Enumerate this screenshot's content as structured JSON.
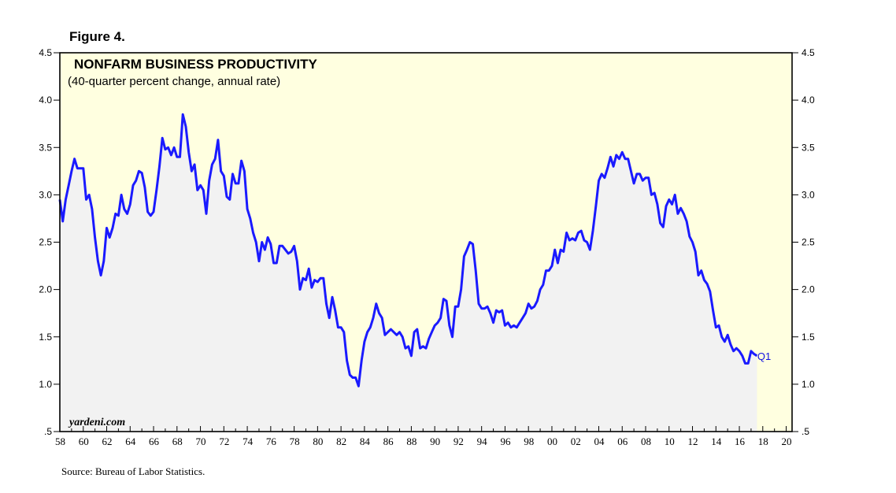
{
  "figure_label": "Figure 4.",
  "watermark": "yardeni.com",
  "source": "Source: Bureau of Labor Statistics.",
  "colors": {
    "plot_bg": "#ffffe0",
    "area_fill": "#f2f2f2",
    "line": "#1a1aff",
    "text": "#000000"
  },
  "chart_data": {
    "type": "area",
    "title": "NONFARM BUSINESS PRODUCTIVITY",
    "subtitle": "(40-quarter percent change, annual rate)",
    "xlabel": "",
    "ylabel": "",
    "xlim": [
      1958,
      2020.5
    ],
    "ylim": [
      0.5,
      4.5
    ],
    "y_ticks": [
      0.5,
      1.0,
      1.5,
      2.0,
      2.5,
      3.0,
      3.5,
      4.0,
      4.5
    ],
    "y_tick_labels": [
      ".5",
      "1.0",
      "1.5",
      "2.0",
      "2.5",
      "3.0",
      "3.5",
      "4.0",
      "4.5"
    ],
    "x_tick_labels": [
      "58",
      "60",
      "62",
      "64",
      "66",
      "68",
      "70",
      "72",
      "74",
      "76",
      "78",
      "80",
      "82",
      "84",
      "86",
      "88",
      "90",
      "92",
      "94",
      "96",
      "98",
      "00",
      "02",
      "04",
      "06",
      "08",
      "10",
      "12",
      "14",
      "16",
      "18",
      "20"
    ],
    "annotation": {
      "text": "Q1",
      "x": 2017.0,
      "y": 1.3
    },
    "series": [
      {
        "name": "Nonfarm business productivity",
        "points": [
          [
            1958.0,
            2.95
          ],
          [
            1958.25,
            2.72
          ],
          [
            1958.5,
            2.95
          ],
          [
            1958.75,
            3.1
          ],
          [
            1959.0,
            3.25
          ],
          [
            1959.25,
            3.38
          ],
          [
            1959.5,
            3.28
          ],
          [
            1960.0,
            3.28
          ],
          [
            1960.25,
            2.95
          ],
          [
            1960.5,
            3.0
          ],
          [
            1960.75,
            2.85
          ],
          [
            1961.0,
            2.55
          ],
          [
            1961.25,
            2.3
          ],
          [
            1961.5,
            2.15
          ],
          [
            1961.75,
            2.3
          ],
          [
            1962.0,
            2.65
          ],
          [
            1962.25,
            2.55
          ],
          [
            1962.5,
            2.65
          ],
          [
            1962.75,
            2.8
          ],
          [
            1963.0,
            2.78
          ],
          [
            1963.25,
            3.0
          ],
          [
            1963.5,
            2.85
          ],
          [
            1963.75,
            2.8
          ],
          [
            1964.0,
            2.9
          ],
          [
            1964.25,
            3.1
          ],
          [
            1964.5,
            3.15
          ],
          [
            1964.75,
            3.25
          ],
          [
            1965.0,
            3.23
          ],
          [
            1965.25,
            3.08
          ],
          [
            1965.5,
            2.82
          ],
          [
            1965.75,
            2.78
          ],
          [
            1966.0,
            2.82
          ],
          [
            1966.25,
            3.05
          ],
          [
            1966.5,
            3.3
          ],
          [
            1966.75,
            3.6
          ],
          [
            1967.0,
            3.48
          ],
          [
            1967.25,
            3.5
          ],
          [
            1967.5,
            3.42
          ],
          [
            1967.75,
            3.5
          ],
          [
            1968.0,
            3.4
          ],
          [
            1968.25,
            3.4
          ],
          [
            1968.5,
            3.85
          ],
          [
            1968.75,
            3.72
          ],
          [
            1969.0,
            3.45
          ],
          [
            1969.25,
            3.25
          ],
          [
            1969.5,
            3.32
          ],
          [
            1969.75,
            3.05
          ],
          [
            1970.0,
            3.1
          ],
          [
            1970.25,
            3.05
          ],
          [
            1970.5,
            2.8
          ],
          [
            1970.75,
            3.15
          ],
          [
            1971.0,
            3.32
          ],
          [
            1971.25,
            3.38
          ],
          [
            1971.5,
            3.58
          ],
          [
            1971.75,
            3.25
          ],
          [
            1972.0,
            3.2
          ],
          [
            1972.25,
            2.98
          ],
          [
            1972.5,
            2.95
          ],
          [
            1972.75,
            3.22
          ],
          [
            1973.0,
            3.12
          ],
          [
            1973.25,
            3.12
          ],
          [
            1973.5,
            3.36
          ],
          [
            1973.75,
            3.25
          ],
          [
            1974.0,
            2.85
          ],
          [
            1974.25,
            2.75
          ],
          [
            1974.5,
            2.6
          ],
          [
            1974.75,
            2.5
          ],
          [
            1975.0,
            2.3
          ],
          [
            1975.25,
            2.5
          ],
          [
            1975.5,
            2.42
          ],
          [
            1975.75,
            2.55
          ],
          [
            1976.0,
            2.48
          ],
          [
            1976.25,
            2.28
          ],
          [
            1976.5,
            2.28
          ],
          [
            1976.75,
            2.46
          ],
          [
            1977.0,
            2.46
          ],
          [
            1977.25,
            2.42
          ],
          [
            1977.5,
            2.38
          ],
          [
            1977.75,
            2.4
          ],
          [
            1978.0,
            2.46
          ],
          [
            1978.25,
            2.3
          ],
          [
            1978.5,
            2.0
          ],
          [
            1978.75,
            2.12
          ],
          [
            1979.0,
            2.1
          ],
          [
            1979.25,
            2.22
          ],
          [
            1979.5,
            2.02
          ],
          [
            1979.75,
            2.1
          ],
          [
            1980.0,
            2.08
          ],
          [
            1980.25,
            2.12
          ],
          [
            1980.5,
            2.12
          ],
          [
            1980.75,
            1.85
          ],
          [
            1981.0,
            1.7
          ],
          [
            1981.25,
            1.92
          ],
          [
            1981.5,
            1.78
          ],
          [
            1981.75,
            1.6
          ],
          [
            1982.0,
            1.6
          ],
          [
            1982.25,
            1.55
          ],
          [
            1982.5,
            1.25
          ],
          [
            1982.75,
            1.1
          ],
          [
            1983.0,
            1.07
          ],
          [
            1983.25,
            1.07
          ],
          [
            1983.5,
            0.98
          ],
          [
            1983.75,
            1.25
          ],
          [
            1984.0,
            1.45
          ],
          [
            1984.25,
            1.55
          ],
          [
            1984.5,
            1.6
          ],
          [
            1984.75,
            1.7
          ],
          [
            1985.0,
            1.85
          ],
          [
            1985.25,
            1.75
          ],
          [
            1985.5,
            1.7
          ],
          [
            1985.75,
            1.52
          ],
          [
            1986.0,
            1.55
          ],
          [
            1986.25,
            1.58
          ],
          [
            1986.5,
            1.55
          ],
          [
            1986.75,
            1.52
          ],
          [
            1987.0,
            1.55
          ],
          [
            1987.25,
            1.5
          ],
          [
            1987.5,
            1.38
          ],
          [
            1987.75,
            1.4
          ],
          [
            1988.0,
            1.3
          ],
          [
            1988.25,
            1.55
          ],
          [
            1988.5,
            1.58
          ],
          [
            1988.75,
            1.38
          ],
          [
            1989.0,
            1.4
          ],
          [
            1989.25,
            1.38
          ],
          [
            1989.5,
            1.48
          ],
          [
            1989.75,
            1.55
          ],
          [
            1990.0,
            1.62
          ],
          [
            1990.25,
            1.65
          ],
          [
            1990.5,
            1.7
          ],
          [
            1990.75,
            1.9
          ],
          [
            1991.0,
            1.88
          ],
          [
            1991.25,
            1.62
          ],
          [
            1991.5,
            1.5
          ],
          [
            1991.75,
            1.82
          ],
          [
            1992.0,
            1.82
          ],
          [
            1992.25,
            2.0
          ],
          [
            1992.5,
            2.35
          ],
          [
            1992.75,
            2.42
          ],
          [
            1993.0,
            2.5
          ],
          [
            1993.25,
            2.48
          ],
          [
            1993.5,
            2.2
          ],
          [
            1993.75,
            1.85
          ],
          [
            1994.0,
            1.8
          ],
          [
            1994.25,
            1.8
          ],
          [
            1994.5,
            1.82
          ],
          [
            1994.75,
            1.75
          ],
          [
            1995.0,
            1.65
          ],
          [
            1995.25,
            1.78
          ],
          [
            1995.5,
            1.76
          ],
          [
            1995.75,
            1.78
          ],
          [
            1996.0,
            1.62
          ],
          [
            1996.25,
            1.65
          ],
          [
            1996.5,
            1.6
          ],
          [
            1996.75,
            1.62
          ],
          [
            1997.0,
            1.6
          ],
          [
            1997.25,
            1.65
          ],
          [
            1997.5,
            1.7
          ],
          [
            1997.75,
            1.75
          ],
          [
            1998.0,
            1.85
          ],
          [
            1998.25,
            1.8
          ],
          [
            1998.5,
            1.82
          ],
          [
            1998.75,
            1.88
          ],
          [
            1999.0,
            2.0
          ],
          [
            1999.25,
            2.05
          ],
          [
            1999.5,
            2.2
          ],
          [
            1999.75,
            2.2
          ],
          [
            2000.0,
            2.25
          ],
          [
            2000.25,
            2.42
          ],
          [
            2000.5,
            2.28
          ],
          [
            2000.75,
            2.42
          ],
          [
            2001.0,
            2.4
          ],
          [
            2001.25,
            2.6
          ],
          [
            2001.5,
            2.52
          ],
          [
            2001.75,
            2.54
          ],
          [
            2002.0,
            2.52
          ],
          [
            2002.25,
            2.6
          ],
          [
            2002.5,
            2.62
          ],
          [
            2002.75,
            2.52
          ],
          [
            2003.0,
            2.5
          ],
          [
            2003.25,
            2.42
          ],
          [
            2003.5,
            2.62
          ],
          [
            2003.75,
            2.88
          ],
          [
            2004.0,
            3.15
          ],
          [
            2004.25,
            3.22
          ],
          [
            2004.5,
            3.18
          ],
          [
            2004.75,
            3.28
          ],
          [
            2005.0,
            3.4
          ],
          [
            2005.25,
            3.3
          ],
          [
            2005.5,
            3.42
          ],
          [
            2005.75,
            3.38
          ],
          [
            2006.0,
            3.45
          ],
          [
            2006.25,
            3.38
          ],
          [
            2006.5,
            3.38
          ],
          [
            2006.75,
            3.25
          ],
          [
            2007.0,
            3.12
          ],
          [
            2007.25,
            3.22
          ],
          [
            2007.5,
            3.22
          ],
          [
            2007.75,
            3.15
          ],
          [
            2008.0,
            3.18
          ],
          [
            2008.25,
            3.18
          ],
          [
            2008.5,
            3.0
          ],
          [
            2008.75,
            3.02
          ],
          [
            2009.0,
            2.9
          ],
          [
            2009.25,
            2.7
          ],
          [
            2009.5,
            2.66
          ],
          [
            2009.75,
            2.88
          ],
          [
            2010.0,
            2.95
          ],
          [
            2010.25,
            2.9
          ],
          [
            2010.5,
            3.0
          ],
          [
            2010.75,
            2.8
          ],
          [
            2011.0,
            2.86
          ],
          [
            2011.25,
            2.8
          ],
          [
            2011.5,
            2.72
          ],
          [
            2011.75,
            2.56
          ],
          [
            2012.0,
            2.5
          ],
          [
            2012.25,
            2.4
          ],
          [
            2012.5,
            2.15
          ],
          [
            2012.75,
            2.2
          ],
          [
            2013.0,
            2.1
          ],
          [
            2013.25,
            2.06
          ],
          [
            2013.5,
            1.98
          ],
          [
            2013.75,
            1.78
          ],
          [
            2014.0,
            1.6
          ],
          [
            2014.25,
            1.62
          ],
          [
            2014.5,
            1.5
          ],
          [
            2014.75,
            1.45
          ],
          [
            2015.0,
            1.52
          ],
          [
            2015.25,
            1.42
          ],
          [
            2015.5,
            1.35
          ],
          [
            2015.75,
            1.38
          ],
          [
            2016.0,
            1.35
          ],
          [
            2016.25,
            1.3
          ],
          [
            2016.5,
            1.22
          ],
          [
            2016.75,
            1.22
          ],
          [
            2017.0,
            1.35
          ],
          [
            2017.25,
            1.32
          ],
          [
            2017.5,
            1.3
          ]
        ]
      }
    ]
  }
}
